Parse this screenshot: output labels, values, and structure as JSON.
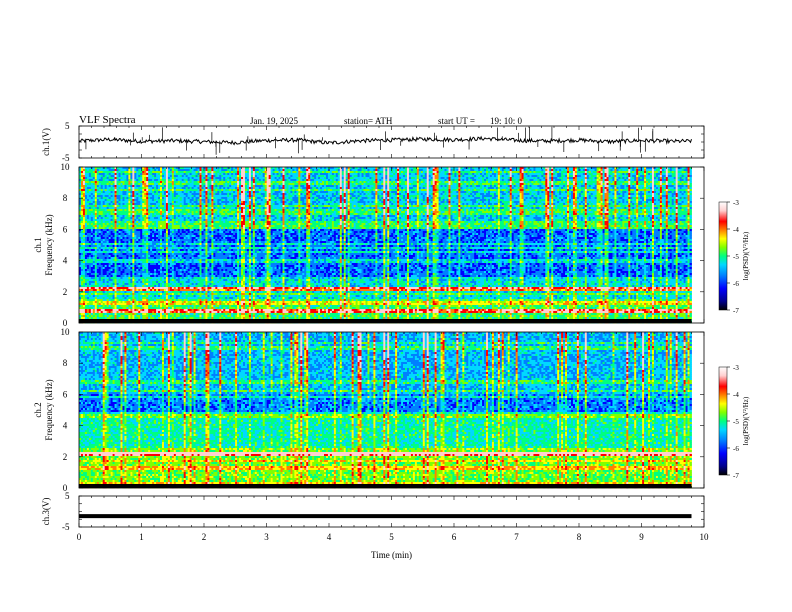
{
  "header": {
    "title": "VLF  Spectra",
    "date": "Jan.  19,  2025",
    "station": "station= ATH",
    "start_label": "start  UT  =",
    "start_time": "19: 10: 0"
  },
  "colors": {
    "background": "#ffffff",
    "waveform": "#000000",
    "colormap": [
      "#000000",
      "#00008b",
      "#0000ff",
      "#0080ff",
      "#00d8ff",
      "#00ff80",
      "#80ff00",
      "#ffff00",
      "#ff8000",
      "#ff0000",
      "#ffd0d0",
      "#ffffff"
    ]
  },
  "chart_data": [
    {
      "type": "line",
      "panel": "ch1-waveform",
      "ylabel": "ch.1(V)",
      "ylim": [
        -5,
        5
      ],
      "yticks": [
        "5",
        "-5"
      ],
      "x": [
        0,
        0.5,
        1,
        1.5,
        2,
        2.5,
        3,
        3.5,
        4,
        4.5,
        5,
        5.5,
        6,
        6.5,
        7,
        7.5,
        8,
        8.5,
        9,
        9.5,
        9.8
      ],
      "y": [
        0.3,
        0.8,
        0.2,
        0.4,
        0.1,
        -0.2,
        0.5,
        0.6,
        -0.3,
        0.4,
        0.6,
        0.9,
        0.7,
        1.1,
        0.5,
        0.3,
        0.6,
        0.1,
        0.5,
        0.2,
        0.3
      ],
      "xlim": [
        0,
        10
      ]
    },
    {
      "type": "heatmap",
      "panel": "ch1-spectrogram",
      "ylabel": [
        "ch.1",
        "Frequency  (kHz)"
      ],
      "ylim": [
        0,
        10
      ],
      "yticks": [
        "0",
        "2",
        "4",
        "6",
        "8",
        "10"
      ],
      "xlim": [
        0,
        10
      ],
      "colorbar": {
        "label": "log(PSD)(V²/Hz)",
        "range": [
          -7,
          -3
        ],
        "ticks": [
          "-3",
          "-4",
          "-5",
          "-6",
          "-7"
        ]
      }
    },
    {
      "type": "heatmap",
      "panel": "ch2-spectrogram",
      "ylabel": [
        "ch.2",
        "Frequency  (kHz)"
      ],
      "ylim": [
        0,
        10
      ],
      "yticks": [
        "0",
        "2",
        "4",
        "6",
        "8",
        "10"
      ],
      "xlim": [
        0,
        10
      ],
      "colorbar": {
        "label": "log(PSD)(V²/Hz)",
        "range": [
          -7,
          -3
        ],
        "ticks": [
          "-3",
          "-4",
          "-5",
          "-6",
          "-7"
        ]
      }
    },
    {
      "type": "line",
      "panel": "ch3-waveform",
      "ylabel": "ch.3(V)",
      "ylim": [
        -5,
        5
      ],
      "yticks": [
        "5",
        "-5"
      ],
      "x": [
        0,
        9.8
      ],
      "y": [
        -1.5,
        -1.5
      ],
      "xlim": [
        0,
        10
      ],
      "xlabel": "Time  (min)",
      "xticks": [
        "0",
        "1",
        "2",
        "3",
        "4",
        "5",
        "6",
        "7",
        "8",
        "9",
        "10"
      ]
    }
  ]
}
